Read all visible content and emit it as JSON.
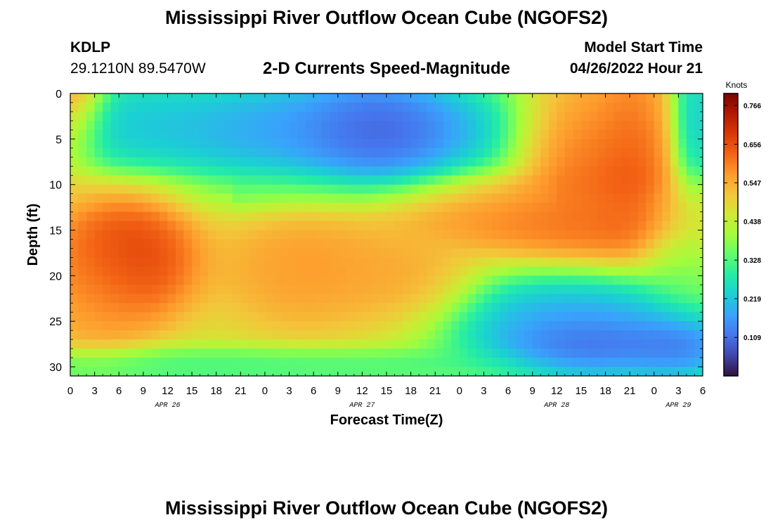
{
  "header": {
    "title": "Mississippi River Outflow Ocean Cube (NGOFS2)",
    "station_id": "KDLP",
    "station_coords": "29.1210N  89.5470W",
    "subtitle": "2-D Currents Speed-Magnitude",
    "model_start_label": "Model Start Time",
    "model_start_value": "04/26/2022 Hour 21"
  },
  "footer": {
    "title": "Mississippi River Outflow Ocean Cube (NGOFS2)"
  },
  "colors": {
    "cmap": [
      "#30123b",
      "#4145ab",
      "#4675ed",
      "#39a2fc",
      "#1bcfd4",
      "#24eca6",
      "#61fc6c",
      "#a4fc3b",
      "#d1e834",
      "#f3c63a",
      "#fe9b2d",
      "#f36315",
      "#d93806",
      "#b11901",
      "#7a0402"
    ]
  },
  "chart_data": {
    "type": "heatmap",
    "title": "2-D Currents Speed-Magnitude",
    "xlabel": "Forecast Time(Z)",
    "ylabel": "Depth (ft)",
    "x_range_hours": [
      0,
      78
    ],
    "y_range_ft": [
      0,
      31
    ],
    "x_tick_labels": [
      "0",
      "3",
      "6",
      "9",
      "12",
      "15",
      "18",
      "21",
      "0",
      "3",
      "6",
      "9",
      "12",
      "15",
      "18",
      "21",
      "0",
      "3",
      "6",
      "9",
      "12",
      "15",
      "18",
      "21",
      "0",
      "3",
      "6"
    ],
    "y_ticks": [
      0,
      5,
      10,
      15,
      20,
      25,
      30
    ],
    "date_labels": [
      {
        "label": "APR 26",
        "hour": 12
      },
      {
        "label": "APR 27",
        "hour": 36
      },
      {
        "label": "APR 28",
        "hour": 60
      },
      {
        "label": "APR 29",
        "hour": 75
      }
    ],
    "colorbar": {
      "unit": "Knots",
      "min": 0.0,
      "max": 0.8,
      "tick_values": [
        0.766,
        0.656,
        0.547,
        0.438,
        0.328,
        0.219,
        0.109
      ],
      "tick_labels": [
        "0.766",
        "0.656",
        "0.547",
        "0.438",
        "0.328",
        "0.219",
        "0.109"
      ]
    },
    "field_features": [
      {
        "hour": 0,
        "depth": 0,
        "spread_h": 2.5,
        "spread_d": 4,
        "value": 0.72
      },
      {
        "hour": 7,
        "depth": 3,
        "spread_h": 7,
        "spread_d": 3,
        "value": 0.2
      },
      {
        "hour": 32,
        "depth": 4,
        "spread_h": 14,
        "spread_d": 4,
        "value": 0.1
      },
      {
        "hour": 38,
        "depth": 4,
        "spread_h": 5,
        "spread_d": 3,
        "value": 0.02
      },
      {
        "hour": 64,
        "depth": 4,
        "spread_h": 5,
        "spread_d": 5,
        "value": 0.55
      },
      {
        "hour": 63,
        "depth": 6,
        "spread_h": 4,
        "spread_d": 4,
        "value": 0.72
      },
      {
        "hour": 69,
        "depth": 6,
        "spread_h": 3,
        "spread_d": 5,
        "value": 0.72
      },
      {
        "hour": 66,
        "depth": 14,
        "spread_h": 10,
        "spread_d": 2.5,
        "value": 0.66
      },
      {
        "hour": 55,
        "depth": 13,
        "spread_h": 10,
        "spread_d": 2,
        "value": 0.6
      },
      {
        "hour": 7,
        "depth": 18,
        "spread_h": 5,
        "spread_d": 4,
        "value": 0.74
      },
      {
        "hour": 3,
        "depth": 22,
        "spread_h": 4,
        "spread_d": 4,
        "value": 0.58
      },
      {
        "hour": 29,
        "depth": 19,
        "spread_h": 6,
        "spread_d": 4,
        "value": 0.6
      },
      {
        "hour": 41,
        "depth": 21,
        "spread_h": 5,
        "spread_d": 3,
        "value": 0.58
      },
      {
        "hour": 62,
        "depth": 25,
        "spread_h": 10,
        "spread_d": 3,
        "value": 0.1
      },
      {
        "hour": 64,
        "depth": 28,
        "spread_h": 6,
        "spread_d": 2,
        "value": 0.02
      },
      {
        "hour": 75,
        "depth": 28,
        "spread_h": 4,
        "spread_d": 2,
        "value": 0.05
      },
      {
        "hour": 76,
        "depth": 17,
        "spread_h": 3,
        "spread_d": 4,
        "value": 0.35
      },
      {
        "hour": 77,
        "depth": 2,
        "spread_h": 1.5,
        "spread_d": 6,
        "value": 0.18
      },
      {
        "hour": 20,
        "depth": 30,
        "spread_h": 30,
        "spread_d": 1.2,
        "value": 0.28
      }
    ]
  }
}
